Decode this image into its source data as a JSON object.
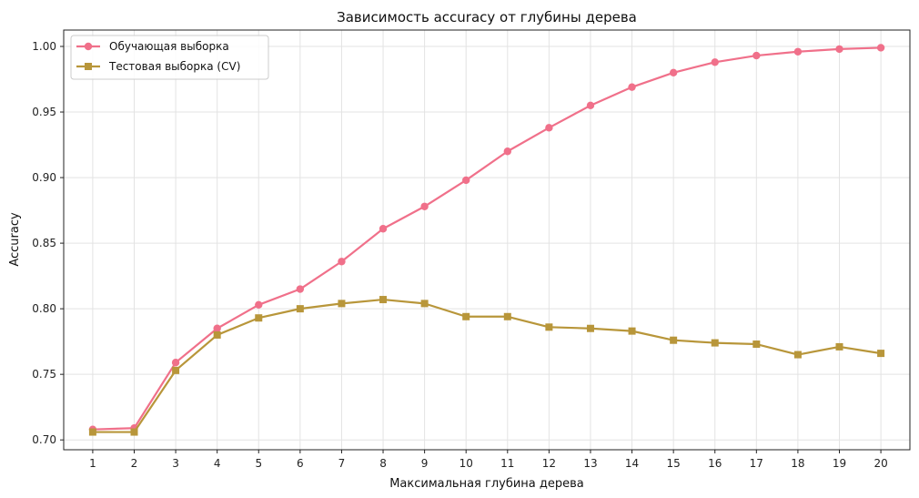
{
  "chart_data": {
    "type": "line",
    "title": "Зависимость accuracy от глубины дерева",
    "xlabel": "Максимальная глубина дерева",
    "ylabel": "Accuracy",
    "x": [
      1,
      2,
      3,
      4,
      5,
      6,
      7,
      8,
      9,
      10,
      11,
      12,
      13,
      14,
      15,
      16,
      17,
      18,
      19,
      20
    ],
    "xlim": [
      0.3,
      20.7
    ],
    "ylim": [
      0.6925,
      1.0125
    ],
    "yticks": [
      "0.70",
      "0.75",
      "0.80",
      "0.85",
      "0.90",
      "0.95",
      "1.00"
    ],
    "grid": true,
    "legend_position": "top-left",
    "series": [
      {
        "name": "Обучающая выборка",
        "color": "#f0708a",
        "marker": "circle",
        "values": [
          0.708,
          0.709,
          0.759,
          0.785,
          0.803,
          0.815,
          0.836,
          0.861,
          0.878,
          0.898,
          0.92,
          0.938,
          0.955,
          0.969,
          0.98,
          0.988,
          0.993,
          0.996,
          0.998,
          0.999
        ]
      },
      {
        "name": "Тестовая выборка (CV)",
        "color": "#b8963a",
        "marker": "square",
        "values": [
          0.706,
          0.706,
          0.753,
          0.78,
          0.793,
          0.8,
          0.804,
          0.807,
          0.804,
          0.794,
          0.794,
          0.786,
          0.785,
          0.783,
          0.776,
          0.774,
          0.773,
          0.765,
          0.771,
          0.766
        ]
      }
    ]
  }
}
